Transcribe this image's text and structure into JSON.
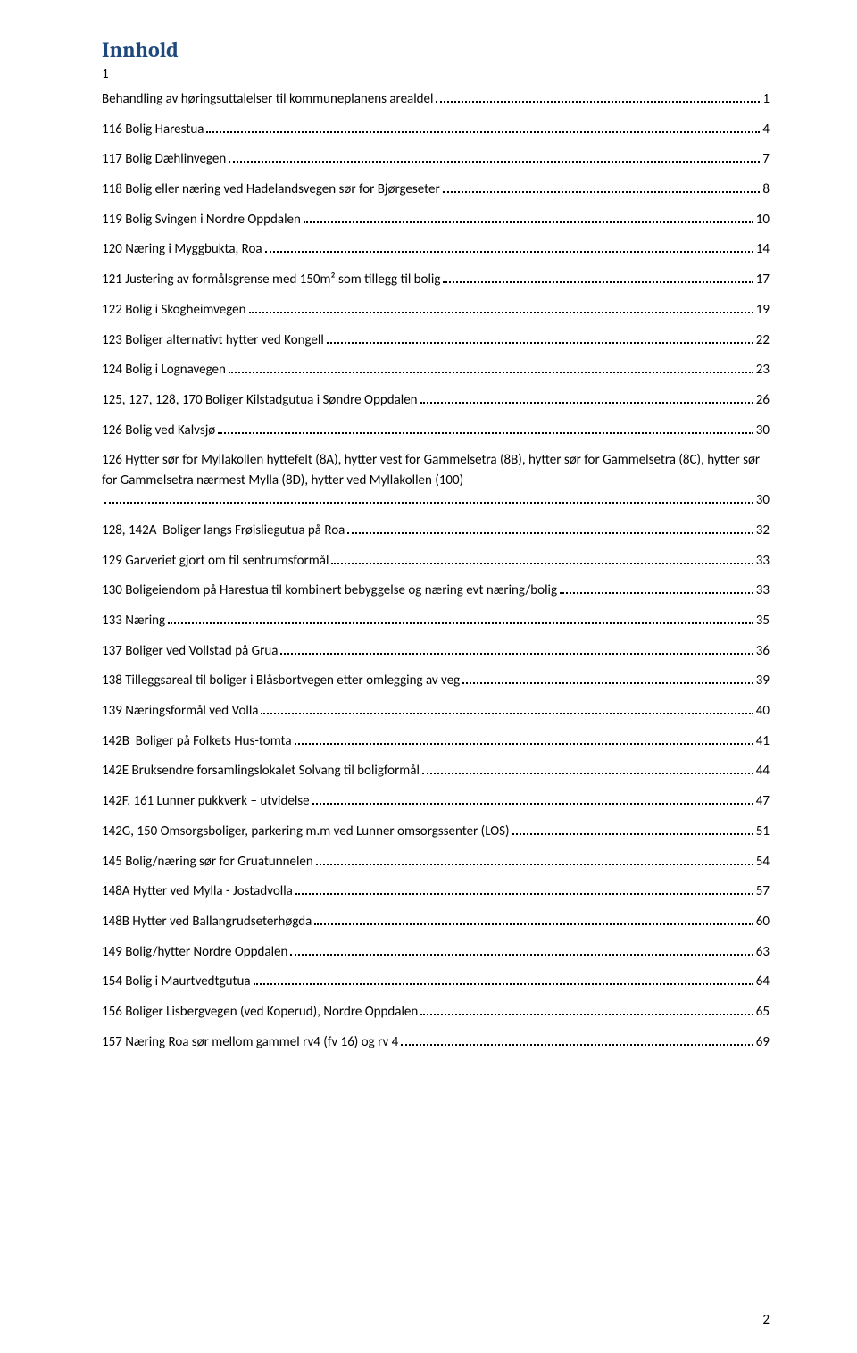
{
  "title": "Innhold",
  "leading_number": "1",
  "page_number": "2",
  "colors": {
    "title": "#1f497d",
    "text": "#000000",
    "background": "#ffffff",
    "dots": "#000000"
  },
  "typography": {
    "title_fontsize_pt": 18,
    "body_fontsize_pt": 11,
    "title_font_family": "Cambria",
    "body_font_family": "Calibri"
  },
  "toc": [
    {
      "label": "Behandling av høringsuttalelser til kommuneplanens arealdel",
      "page": "1"
    },
    {
      "label": "116 Bolig Harestua",
      "page": "4"
    },
    {
      "label": "117 Bolig Dæhlinvegen",
      "page": "7"
    },
    {
      "label": "118 Bolig eller næring ved Hadelandsvegen sør for Bjørgeseter",
      "page": "8"
    },
    {
      "label": "119 Bolig Svingen i Nordre Oppdalen",
      "page": "10"
    },
    {
      "label": "120 Næring i Myggbukta, Roa",
      "page": "14"
    },
    {
      "label": "121 Justering av formålsgrense med 150m² som tillegg til bolig",
      "page": "17"
    },
    {
      "label": "122 Bolig i Skogheimvegen",
      "page": "19"
    },
    {
      "label": "123 Boliger alternativt hytter ved Kongell",
      "page": "22"
    },
    {
      "label": "124 Bolig i Lognavegen",
      "page": "23"
    },
    {
      "label": "125, 127, 128, 170 Boliger Kilstadgutua i Søndre Oppdalen",
      "page": "26"
    },
    {
      "label": "126 Bolig ved Kalvsjø",
      "page": "30"
    },
    {
      "label": "126 Hytter sør for Myllakollen hyttefelt (8A), hytter vest for Gammelsetra (8B), hytter sør for Gammelsetra (8C), hytter sør for Gammelsetra nærmest Mylla (8D), hytter ved Myllakollen (100)",
      "page": "30",
      "multiline": true
    },
    {
      "label": "128, 142A  Boliger langs Frøisliegutua på Roa",
      "page": "32"
    },
    {
      "label": "129 Garveriet gjort om til sentrumsformål",
      "page": "33"
    },
    {
      "label": "130 Boligeiendom på Harestua til kombinert bebyggelse og næring evt næring/bolig",
      "page": "33"
    },
    {
      "label": "133 Næring",
      "page": "35"
    },
    {
      "label": "137 Boliger ved Vollstad på Grua",
      "page": "36"
    },
    {
      "label": "138 Tilleggsareal til boliger i Blåsbortvegen etter omlegging av veg",
      "page": "39"
    },
    {
      "label": "139 Næringsformål ved Volla",
      "page": "40"
    },
    {
      "label": "142B  Boliger på Folkets Hus-tomta",
      "page": "41"
    },
    {
      "label": "142E Bruksendre forsamlingslokalet Solvang til boligformål",
      "page": "44"
    },
    {
      "label": "142F, 161 Lunner pukkverk – utvidelse",
      "page": "47"
    },
    {
      "label": "142G, 150 Omsorgsboliger, parkering m.m ved Lunner omsorgssenter (LOS)",
      "page": "51"
    },
    {
      "label": "145 Bolig/næring sør for Gruatunnelen",
      "page": "54"
    },
    {
      "label": "148A Hytter ved Mylla - Jostadvolla",
      "page": "57"
    },
    {
      "label": "148B Hytter ved Ballangrudseterhøgda",
      "page": "60"
    },
    {
      "label": "149 Bolig/hytter Nordre Oppdalen",
      "page": "63"
    },
    {
      "label": "154 Bolig i Maurtvedtgutua",
      "page": "64"
    },
    {
      "label": "156 Boliger Lisbergvegen (ved Koperud), Nordre Oppdalen",
      "page": "65"
    },
    {
      "label": "157 Næring Roa sør mellom gammel rv4 (fv 16) og rv 4",
      "page": "69"
    }
  ]
}
